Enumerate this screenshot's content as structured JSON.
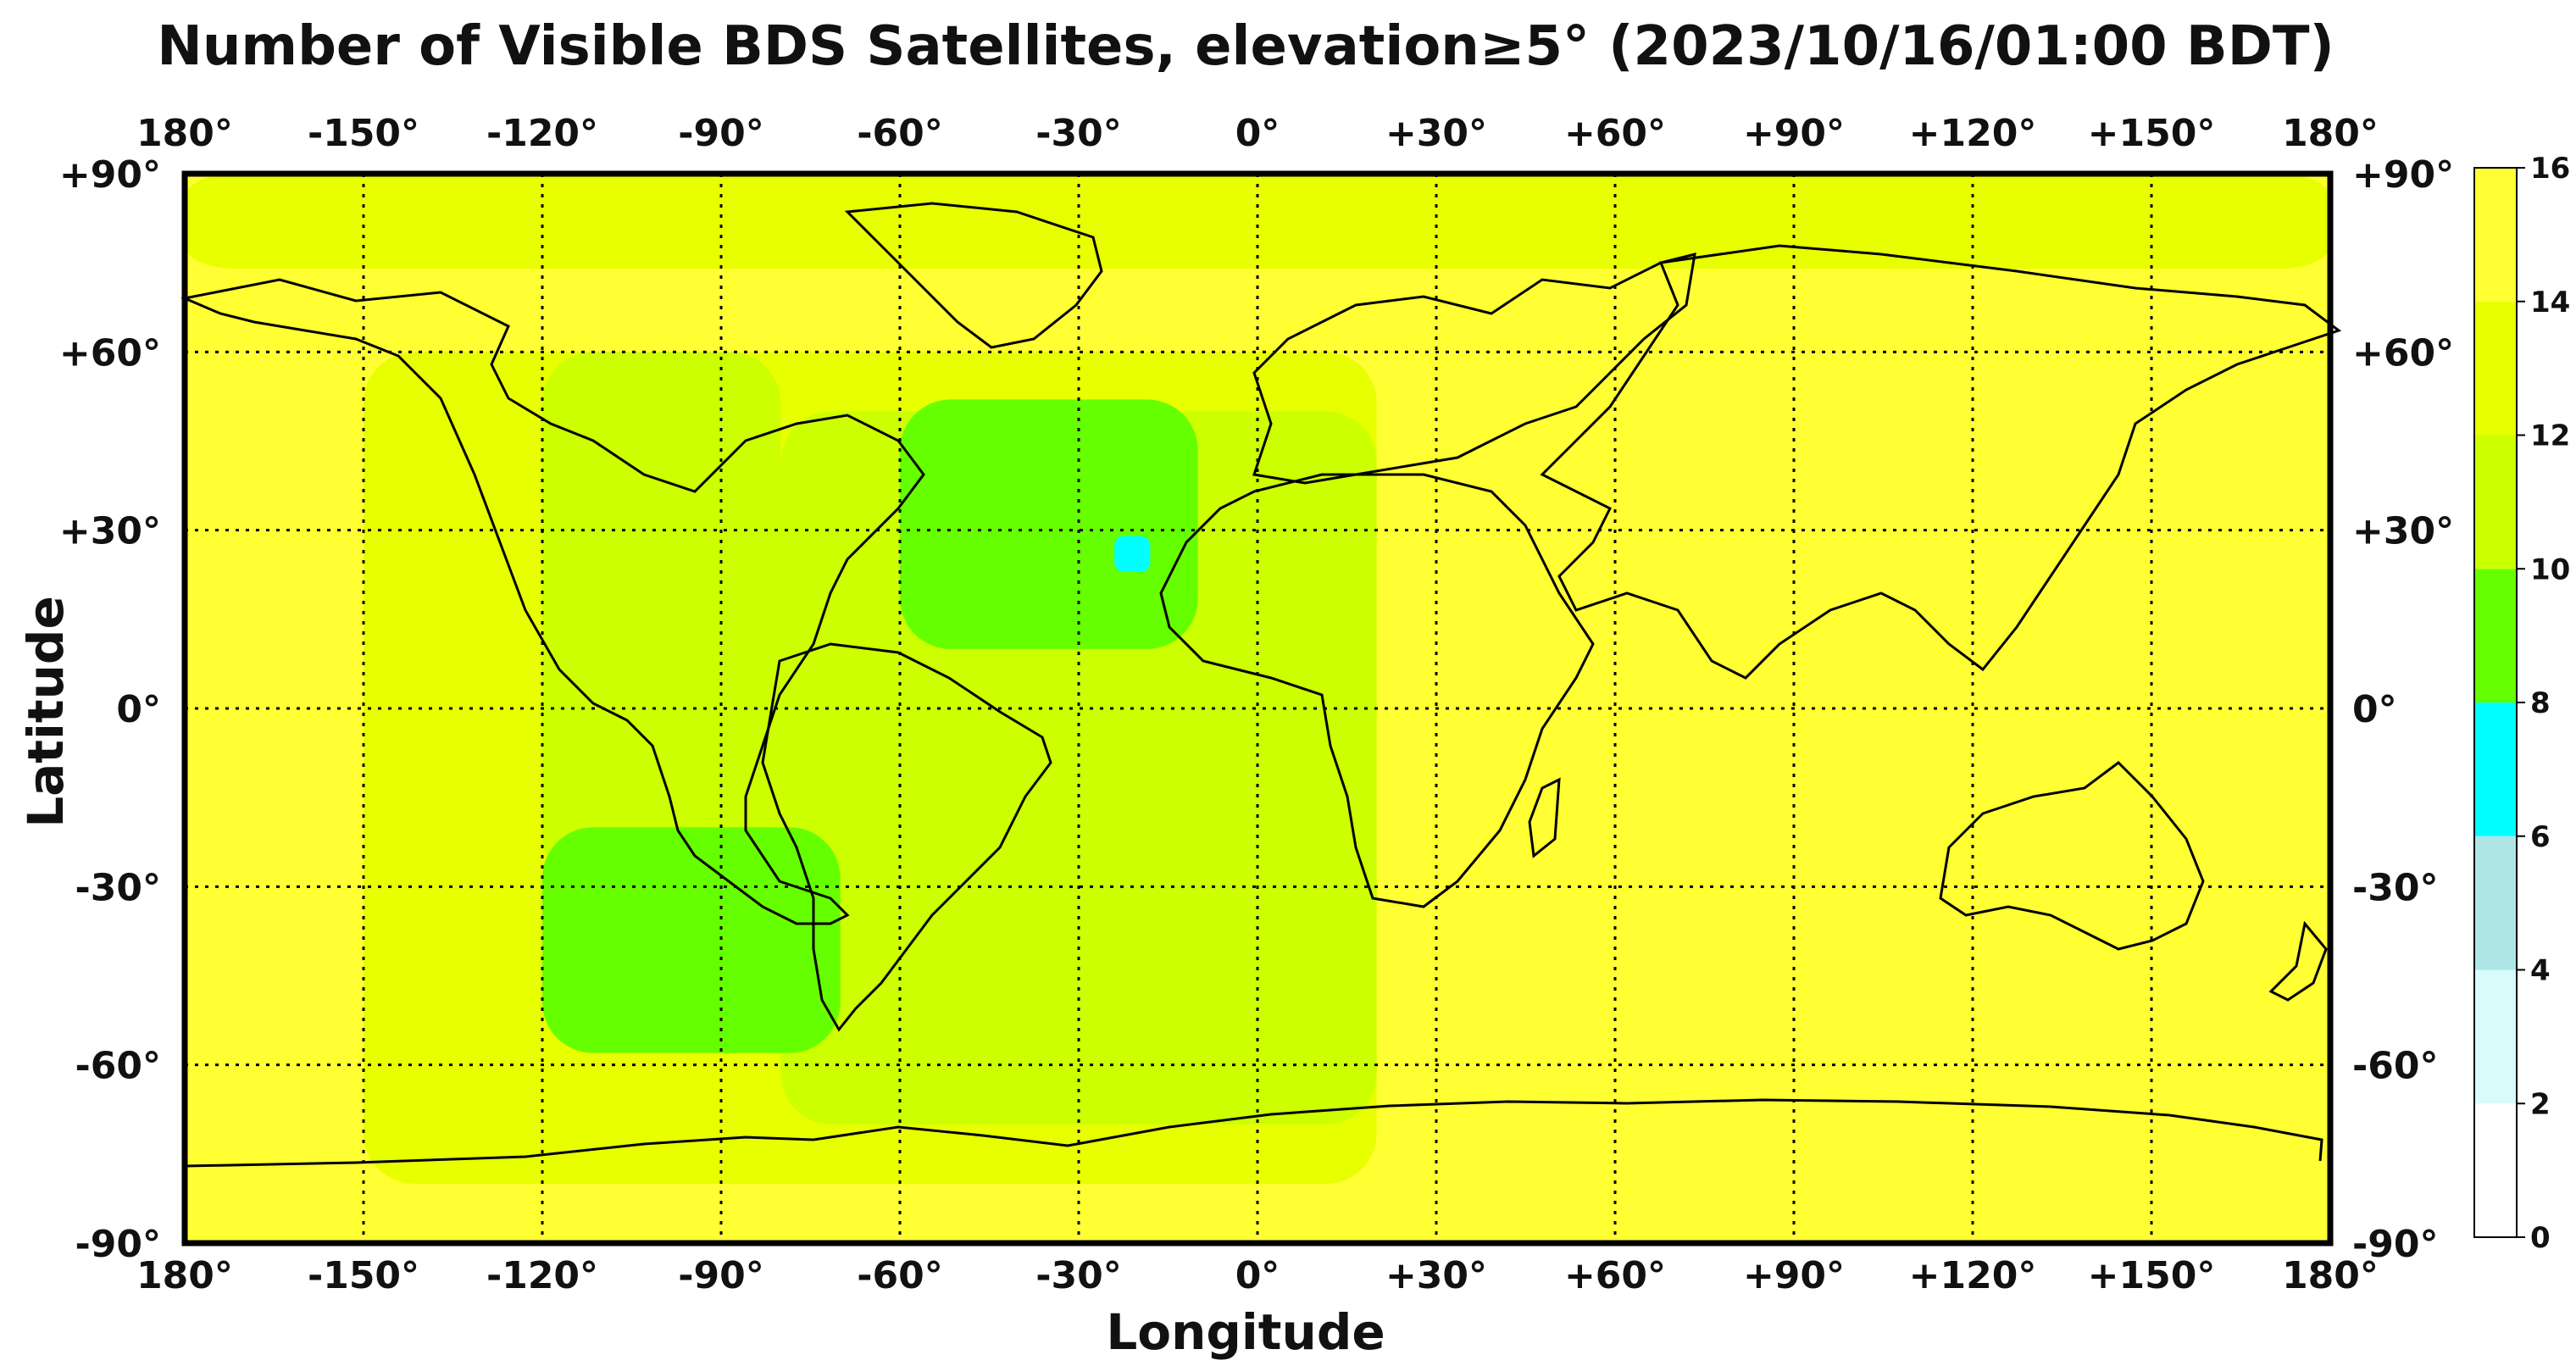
{
  "title": "Number of Visible BDS Satellites, elevation≥5° (2023/10/16/01:00 BDT)",
  "xlabel": "Longitude",
  "ylabel": "Latitude",
  "lon_ticks": [
    "180°",
    "-150°",
    "-120°",
    "-90°",
    "-60°",
    "-30°",
    "0°",
    "+30°",
    "+60°",
    "+90°",
    "+120°",
    "+150°",
    "180°"
  ],
  "lat_ticks": [
    "+90°",
    "+60°",
    "+30°",
    "0°",
    "-30°",
    "-60°",
    "-90°"
  ],
  "colorbar": {
    "ticks": [
      "0",
      "2",
      "4",
      "6",
      "8",
      "10",
      "12",
      "14",
      "16"
    ],
    "colors": [
      "#ffffff",
      "#d8fbfb",
      "#aee6e6",
      "#00ffff",
      "#66ff00",
      "#ccff00",
      "#e8ff00",
      "#ffff33"
    ]
  },
  "chart_data": {
    "type": "heatmap",
    "title": "Number of Visible BDS Satellites, elevation≥5° (2023/10/16/01:00 BDT)",
    "xlabel": "Longitude",
    "ylabel": "Latitude",
    "xlim": [
      -180,
      180
    ],
    "ylim": [
      -90,
      90
    ],
    "grid": true,
    "colorbar_range": [
      0,
      16
    ],
    "background_value": 15,
    "regions": [
      {
        "name": "",
        "value": 13,
        "lon": [
          -180,
          180
        ],
        "lat": [
          74,
          90
        ]
      },
      {
        "name": "",
        "value": 13,
        "lon": [
          -150,
          20
        ],
        "lat": [
          -80,
          60
        ]
      },
      {
        "name": "",
        "value": 11,
        "lon": [
          -120,
          -80
        ],
        "lat": [
          -30,
          60
        ]
      },
      {
        "name": "",
        "value": 11,
        "lon": [
          -80,
          20
        ],
        "lat": [
          -70,
          50
        ]
      },
      {
        "name": "",
        "value": 9,
        "lon": [
          -60,
          -10
        ],
        "lat": [
          10,
          52
        ]
      },
      {
        "name": "",
        "value": 9,
        "lon": [
          -120,
          -70
        ],
        "lat": [
          -58,
          -20
        ]
      },
      {
        "name": "",
        "value": 7,
        "lon": [
          -24,
          -18
        ],
        "lat": [
          23,
          29
        ]
      }
    ]
  }
}
